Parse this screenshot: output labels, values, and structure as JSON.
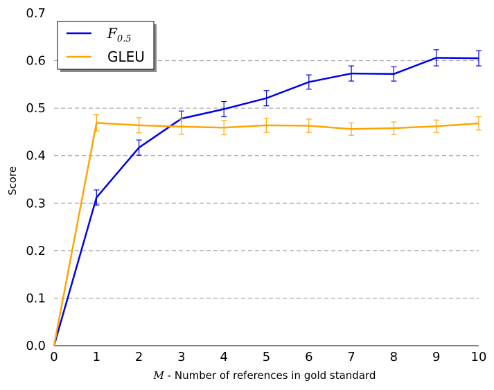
{
  "chart_data": {
    "type": "line",
    "x": [
      0,
      1,
      2,
      3,
      4,
      5,
      6,
      7,
      8,
      9,
      10
    ],
    "xlim": [
      0,
      10
    ],
    "ylim": [
      0,
      0.7
    ],
    "xticks": [
      "0",
      "1",
      "2",
      "3",
      "4",
      "5",
      "6",
      "7",
      "8",
      "9",
      "10"
    ],
    "yticks": [
      "0.0",
      "0.1",
      "0.2",
      "0.3",
      "0.4",
      "0.5",
      "0.6",
      "0.7"
    ],
    "xlabel_var": "M",
    "xlabel_text": " - Number of references in gold standard",
    "ylabel": "Score",
    "grid": "horizontal dashed",
    "legend_position": "top-left",
    "series": [
      {
        "name_base": "F",
        "name_sub": "0.5",
        "color": "#0000ee",
        "values": [
          0.0,
          0.312,
          0.417,
          0.478,
          0.498,
          0.521,
          0.555,
          0.573,
          0.572,
          0.606,
          0.605
        ],
        "errors": [
          0.0,
          0.016,
          0.016,
          0.016,
          0.016,
          0.016,
          0.015,
          0.016,
          0.015,
          0.017,
          0.016
        ]
      },
      {
        "name": "GLEU",
        "color": "#ffa500",
        "values": [
          0.0,
          0.469,
          0.464,
          0.461,
          0.459,
          0.464,
          0.463,
          0.456,
          0.458,
          0.462,
          0.468
        ],
        "errors": [
          0.0,
          0.017,
          0.016,
          0.016,
          0.015,
          0.015,
          0.014,
          0.013,
          0.013,
          0.013,
          0.014
        ]
      }
    ]
  }
}
